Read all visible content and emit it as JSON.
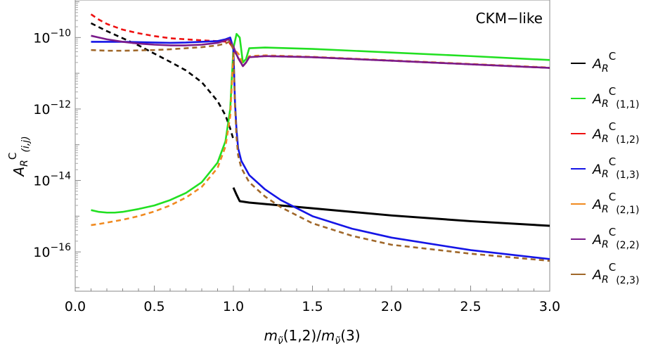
{
  "chart_data": {
    "type": "line",
    "title": "",
    "annotation": "CKM−like",
    "xlabel": {
      "m1": "m",
      "m1_sub": "ν̃",
      "m1_arg": "(1,2)/",
      "m2": "m",
      "m2_sub": "ν̃",
      "m2_arg": "(3)"
    },
    "ylabel": {
      "base": "A",
      "sub": "R",
      "sup": "C",
      "idx": "(i,j)"
    },
    "xlim": [
      0.0,
      3.0
    ],
    "ylim_log10": [
      -17.1,
      -8.95
    ],
    "yscale": "log",
    "x_ticks": [
      "0.0",
      "0.5",
      "1.0",
      "1.5",
      "2.0",
      "2.5",
      "3.0"
    ],
    "x_tick_values": [
      0.0,
      0.5,
      1.0,
      1.5,
      2.0,
      2.5,
      3.0
    ],
    "y_ticks": [
      {
        "exp": -10,
        "base": "10",
        "sup": "−10"
      },
      {
        "exp": -12,
        "base": "10",
        "sup": "−12"
      },
      {
        "exp": -14,
        "base": "10",
        "sup": "−14"
      },
      {
        "exp": -16,
        "base": "10",
        "sup": "−16"
      }
    ],
    "series": [
      {
        "name": "A_R^C",
        "legend": {
          "base": "A",
          "sub": "R",
          "sup": "C",
          "idx": ""
        },
        "color": "#000000",
        "dash": "none",
        "x": [
          0.1,
          0.2,
          0.3,
          0.4,
          0.5,
          0.6,
          0.7,
          0.8,
          0.9,
          0.95,
          0.98,
          1.0,
          1.0,
          1.02,
          1.04,
          1.1,
          1.3,
          1.5,
          2.0,
          2.5,
          3.0
        ],
        "log10y": [
          -9.6,
          -9.82,
          -10.02,
          -10.22,
          -10.45,
          -10.68,
          -10.92,
          -11.25,
          -11.78,
          -12.18,
          -12.55,
          -12.85,
          -14.2,
          -14.4,
          -14.58,
          -14.62,
          -14.7,
          -14.78,
          -14.98,
          -15.14,
          -15.27
        ],
        "dashed_until": 1.0
      },
      {
        "name": "A_R^C(1,1)",
        "legend": {
          "base": "A",
          "sub": "R",
          "sup": "C",
          "idx": "(1,1)"
        },
        "color": "#22e022",
        "dash": "none",
        "x": [
          0.1,
          0.15,
          0.2,
          0.25,
          0.3,
          0.4,
          0.5,
          0.6,
          0.7,
          0.8,
          0.9,
          0.95,
          0.98,
          1.0,
          1.02,
          1.04,
          1.06,
          1.08,
          1.1,
          1.2,
          1.5,
          2.0,
          2.5,
          3.0
        ],
        "log10y": [
          -14.83,
          -14.88,
          -14.9,
          -14.9,
          -14.88,
          -14.8,
          -14.7,
          -14.55,
          -14.35,
          -14.05,
          -13.5,
          -12.9,
          -12.0,
          -10.3,
          -9.9,
          -10.0,
          -10.7,
          -10.6,
          -10.3,
          -10.28,
          -10.32,
          -10.42,
          -10.52,
          -10.63
        ]
      },
      {
        "name": "A_R^C(1,2)",
        "legend": {
          "base": "A",
          "sub": "R",
          "sup": "C",
          "idx": "(1,2)"
        },
        "color": "#ee1111",
        "dash": "7,5",
        "x": [
          0.1,
          0.15,
          0.2,
          0.3,
          0.4,
          0.5,
          0.6,
          0.7,
          0.8,
          0.9,
          0.97,
          1.0,
          1.02,
          1.04,
          1.06,
          1.08,
          1.1,
          1.2,
          1.5,
          2.0,
          2.5,
          3.0
        ],
        "log10y": [
          -9.35,
          -9.5,
          -9.62,
          -9.78,
          -9.88,
          -9.96,
          -10.02,
          -10.05,
          -10.08,
          -10.1,
          -10.12,
          -10.3,
          -10.5,
          -10.65,
          -10.8,
          -10.7,
          -10.55,
          -10.52,
          -10.55,
          -10.65,
          -10.75,
          -10.85
        ]
      },
      {
        "name": "A_R^C(1,3)",
        "legend": {
          "base": "A",
          "sub": "R",
          "sup": "C",
          "idx": "(1,3)"
        },
        "color": "#1515e6",
        "dash": "none",
        "x": [
          0.1,
          0.2,
          0.3,
          0.4,
          0.5,
          0.6,
          0.7,
          0.8,
          0.9,
          0.95,
          0.98,
          1.0,
          1.01,
          1.02,
          1.03,
          1.05,
          1.1,
          1.2,
          1.3,
          1.5,
          1.75,
          2.0,
          2.5,
          3.0
        ],
        "log10y": [
          -10.12,
          -10.12,
          -10.12,
          -10.13,
          -10.14,
          -10.15,
          -10.14,
          -10.12,
          -10.1,
          -10.05,
          -10.0,
          -10.3,
          -11.8,
          -12.6,
          -13.1,
          -13.45,
          -13.85,
          -14.25,
          -14.55,
          -15.0,
          -15.35,
          -15.6,
          -15.95,
          -16.2
        ]
      },
      {
        "name": "A_R^C(2,1)",
        "legend": {
          "base": "A",
          "sub": "R",
          "sup": "C",
          "idx": "(2,1)"
        },
        "color": "#f08a20",
        "dash": "7,5",
        "x": [
          0.1,
          0.15,
          0.2,
          0.3,
          0.4,
          0.5,
          0.6,
          0.7,
          0.8,
          0.9,
          0.95,
          0.98,
          1.0,
          1.02,
          1.04,
          1.06,
          1.08,
          1.1,
          1.2,
          1.5,
          2.0,
          2.5,
          3.0
        ],
        "log10y": [
          -15.25,
          -15.22,
          -15.18,
          -15.1,
          -15.0,
          -14.87,
          -14.7,
          -14.48,
          -14.18,
          -13.65,
          -13.05,
          -12.2,
          -10.5,
          -10.4,
          -10.5,
          -10.8,
          -10.7,
          -10.52,
          -10.5,
          -10.54,
          -10.64,
          -10.74,
          -10.84
        ]
      },
      {
        "name": "A_R^C(2,2)",
        "legend": {
          "base": "A",
          "sub": "R",
          "sup": "C",
          "idx": "(2,2)"
        },
        "color": "#7a1a8a",
        "dash": "none",
        "x": [
          0.1,
          0.15,
          0.2,
          0.3,
          0.4,
          0.5,
          0.6,
          0.7,
          0.8,
          0.9,
          0.97,
          1.0,
          1.02,
          1.04,
          1.06,
          1.08,
          1.1,
          1.2,
          1.5,
          2.0,
          2.5,
          3.0
        ],
        "log10y": [
          -9.95,
          -10.0,
          -10.05,
          -10.12,
          -10.17,
          -10.2,
          -10.22,
          -10.22,
          -10.2,
          -10.15,
          -10.05,
          -10.25,
          -10.48,
          -10.65,
          -10.8,
          -10.7,
          -10.55,
          -10.52,
          -10.55,
          -10.65,
          -10.75,
          -10.85
        ]
      },
      {
        "name": "A_R^C(2,3)",
        "legend": {
          "base": "A",
          "sub": "R",
          "sup": "C",
          "idx": "(2,3)"
        },
        "color": "#a0682a",
        "dash": "7,5",
        "x": [
          0.1,
          0.2,
          0.3,
          0.4,
          0.5,
          0.6,
          0.7,
          0.8,
          0.9,
          0.95,
          0.98,
          1.0,
          1.01,
          1.02,
          1.03,
          1.05,
          1.1,
          1.2,
          1.3,
          1.5,
          1.75,
          2.0,
          2.5,
          3.0
        ],
        "log10y": [
          -10.35,
          -10.37,
          -10.37,
          -10.36,
          -10.35,
          -10.33,
          -10.3,
          -10.27,
          -10.22,
          -10.17,
          -10.1,
          -10.35,
          -11.9,
          -12.8,
          -13.3,
          -13.65,
          -14.05,
          -14.45,
          -14.75,
          -15.2,
          -15.55,
          -15.8,
          -16.05,
          -16.25
        ]
      }
    ]
  }
}
